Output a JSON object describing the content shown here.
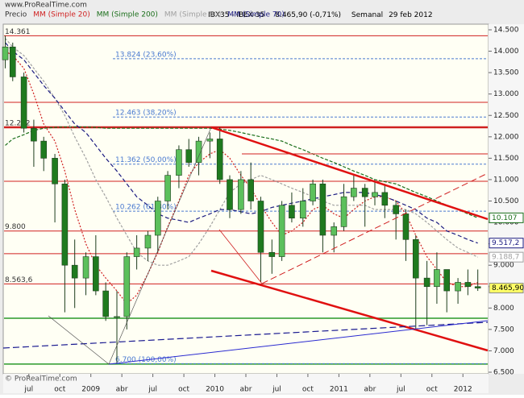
{
  "chart_data": {
    "type": "candlestick",
    "site": "www.ProRealTime.com",
    "copyright": "© ProRealTime.com",
    "header": {
      "symbol": "IBX35 - IBEX-35",
      "last": "8.465,90 (-0,71%)",
      "period": "Semanal",
      "date": "29 feb 2012"
    },
    "xlim": [
      2008.3,
      2012.2
    ],
    "xticks": [
      {
        "value": 2008.5,
        "label": "jul"
      },
      {
        "value": 2008.75,
        "label": "oct"
      },
      2009,
      {
        "value": 2009.25,
        "label": "abr"
      },
      {
        "value": 2009.5,
        "label": "jul"
      },
      {
        "value": 2009.75,
        "label": "oct"
      },
      2010,
      {
        "value": 2010.25,
        "label": "abr"
      },
      {
        "value": 2010.5,
        "label": "jul"
      },
      {
        "value": 2010.75,
        "label": "oct"
      },
      2011,
      {
        "value": 2011.25,
        "label": "abr"
      },
      {
        "value": 2011.5,
        "label": "jul"
      },
      {
        "value": 2011.75,
        "label": "oct"
      },
      2012
    ],
    "ylim": [
      6500,
      14500
    ],
    "yticks": [
      {
        "value": 14500,
        "label": "14.500"
      },
      {
        "value": 14000,
        "label": "14.000"
      },
      {
        "value": 13500,
        "label": "13.500"
      },
      {
        "value": 13000,
        "label": "13.000"
      },
      {
        "value": 12500,
        "label": "12.500"
      },
      {
        "value": 12000,
        "label": "12.000"
      },
      {
        "value": 11500,
        "label": "11.500"
      },
      {
        "value": 11000,
        "label": "11.000"
      },
      {
        "value": 10500,
        "label": "10.500"
      },
      {
        "value": 10000,
        "label": "10.000"
      },
      {
        "value": 9500,
        "label": "9.500"
      },
      {
        "value": 9000,
        "label": "9.000"
      },
      {
        "value": 8500,
        "label": "8.500"
      },
      {
        "value": 8000,
        "label": "8.000"
      },
      {
        "value": 7500,
        "label": "7.500"
      },
      {
        "value": 7000,
        "label": "7.000"
      },
      {
        "value": 6500,
        "label": "6.500"
      }
    ],
    "price": {
      "name": "Precio",
      "x": [
        2008.31,
        2008.37,
        2008.46,
        2008.54,
        2008.62,
        2008.71,
        2008.79,
        2008.87,
        2008.96,
        2009.04,
        2009.12,
        2009.21,
        2009.29,
        2009.37,
        2009.46,
        2009.54,
        2009.62,
        2009.71,
        2009.79,
        2009.87,
        2009.96,
        2010.04,
        2010.12,
        2010.21,
        2010.29,
        2010.37,
        2010.46,
        2010.54,
        2010.62,
        2010.71,
        2010.79,
        2010.87,
        2010.96,
        2011.04,
        2011.12,
        2011.21,
        2011.29,
        2011.37,
        2011.46,
        2011.54,
        2011.62,
        2011.71,
        2011.79,
        2011.87,
        2011.96,
        2012.04,
        2012.12
      ],
      "open": [
        13800,
        14100,
        13400,
        12200,
        11900,
        11500,
        10900,
        9000,
        8700,
        9200,
        8400,
        7800,
        7800,
        9200,
        9400,
        9700,
        10500,
        11100,
        11700,
        11400,
        11900,
        11950,
        11000,
        10300,
        11000,
        10500,
        9300,
        9200,
        10400,
        10100,
        10500,
        10900,
        9700,
        9900,
        10600,
        10800,
        10600,
        10700,
        10400,
        10200,
        9600,
        8700,
        8500,
        8900,
        8400,
        8600,
        8500
      ],
      "high": [
        14361,
        14200,
        13500,
        12400,
        12000,
        11600,
        11000,
        9600,
        9300,
        9700,
        8600,
        8400,
        9300,
        9700,
        9800,
        10600,
        11200,
        11800,
        11950,
        12000,
        12100,
        12222,
        11100,
        11200,
        11400,
        10600,
        9600,
        10500,
        10700,
        10800,
        11000,
        11000,
        10000,
        10900,
        11100,
        10900,
        11000,
        10900,
        10500,
        10300,
        9700,
        9100,
        9300,
        8900,
        8700,
        8900,
        8900
      ],
      "low": [
        13600,
        13300,
        12100,
        11300,
        11200,
        10000,
        7900,
        8000,
        8300,
        8300,
        7700,
        6700,
        7500,
        8900,
        9100,
        9300,
        10300,
        10800,
        11300,
        11100,
        11500,
        10900,
        10100,
        10200,
        10300,
        8600,
        8800,
        9100,
        10000,
        9900,
        10400,
        9300,
        9300,
        9800,
        10500,
        9900,
        10400,
        10100,
        9600,
        9100,
        7500,
        7600,
        8100,
        7900,
        8100,
        8300,
        8400
      ],
      "close": [
        14100,
        13400,
        12200,
        11900,
        11500,
        10900,
        9000,
        8700,
        9200,
        8400,
        7800,
        7800,
        9200,
        9400,
        9700,
        10500,
        11100,
        11700,
        11400,
        11900,
        11950,
        11000,
        10300,
        11000,
        10500,
        9300,
        9200,
        10400,
        10100,
        10500,
        10900,
        9700,
        9900,
        10600,
        10800,
        10600,
        10700,
        10400,
        10200,
        9600,
        8700,
        8500,
        8900,
        8400,
        8600,
        8500,
        8465.9
      ],
      "end_label": {
        "value": 8465.9,
        "label": "8.465,90"
      }
    },
    "series": [
      {
        "name": "MM (Simple 20)",
        "color": "#d02020",
        "dash": "2,2",
        "values": [
          14000,
          13900,
          13600,
          13000,
          12300,
          11900,
          11200,
          10300,
          9500,
          9000,
          8700,
          8400,
          8100,
          8300,
          8800,
          9300,
          9900,
          10500,
          11100,
          11400,
          11600,
          11700,
          11500,
          11100,
          10800,
          10400,
          10000,
          9700,
          9800,
          10000,
          10300,
          10400,
          10200,
          10100,
          10300,
          10500,
          10600,
          10600,
          10500,
          10200,
          9700,
          9200,
          8900,
          8600,
          8500,
          8500,
          8600
        ]
      },
      {
        "name": "MM (Simple 200)",
        "color": "#1a6e1a",
        "dash": "4,2",
        "values": [
          11800,
          11950,
          12050,
          12150,
          12200,
          12220,
          12230,
          12230,
          12230,
          12220,
          12200,
          12200,
          12200,
          12200,
          12200,
          12200,
          12200,
          12200,
          12200,
          12200,
          12200,
          12180,
          12150,
          12100,
          12050,
          12000,
          11950,
          11900,
          11800,
          11700,
          11600,
          11500,
          11400,
          11300,
          11200,
          11100,
          11000,
          10950,
          10900,
          10800,
          10700,
          10600,
          10500,
          10400,
          10300,
          10200,
          10107
        ],
        "end_label": {
          "value": 10107,
          "label": "10.107"
        }
      },
      {
        "name": "MM (Simple 50)",
        "color": "#a0a0a0",
        "dash": "3,2",
        "values": [
          14300,
          14100,
          13900,
          13600,
          13300,
          12900,
          12500,
          12000,
          11500,
          11000,
          10600,
          10100,
          9700,
          9300,
          9100,
          9000,
          9000,
          9100,
          9200,
          9500,
          9900,
          10300,
          10700,
          10900,
          11000,
          11100,
          11000,
          10900,
          10800,
          10700,
          10600,
          10500,
          10400,
          10400,
          10400,
          10400,
          10300,
          10300,
          10300,
          10300,
          10200,
          10000,
          9800,
          9600,
          9400,
          9300,
          9188.7
        ],
        "end_label": {
          "value": 9188.7,
          "label": "9.188,7"
        }
      },
      {
        "name": "MM (Simple 70)",
        "color": "#1a1a80",
        "dash": "5,3",
        "values": [
          14200,
          14000,
          13800,
          13500,
          13200,
          12900,
          12600,
          12300,
          12100,
          11800,
          11500,
          11200,
          10900,
          10600,
          10400,
          10200,
          10100,
          10050,
          10000,
          10100,
          10200,
          10300,
          10300,
          10250,
          10200,
          10250,
          10350,
          10400,
          10450,
          10500,
          10550,
          10600,
          10650,
          10700,
          10700,
          10700,
          10650,
          10600,
          10500,
          10400,
          10300,
          10100,
          10000,
          9800,
          9700,
          9600,
          9517.2
        ],
        "end_label": {
          "value": 9517.2,
          "label": "9.517,2"
        }
      }
    ],
    "levels": [
      {
        "value": 14361,
        "label": "14.361"
      },
      {
        "value": 12806
      },
      {
        "value": 12222,
        "label": "12.222"
      },
      {
        "value": 10962
      },
      {
        "value": 9800,
        "label": "9.800"
      },
      {
        "value": 9269
      },
      {
        "value": 8563.6,
        "label": "8.563,6"
      }
    ],
    "level_color": "#d02020",
    "support_levels": [
      7762,
      6690
    ],
    "support_color": "#2a9a2a",
    "fibonacci": [
      {
        "value": 13824,
        "label": "13.824 (23,60%)"
      },
      {
        "value": 12463,
        "label": "12.463 (38,20%)"
      },
      {
        "value": 11362,
        "label": "11.362 (50,00%)"
      },
      {
        "value": 10262,
        "label": "10.262 (61,80%)"
      },
      {
        "value": 6700,
        "label": "6.700 (100,00%)"
      }
    ],
    "fib_color": "#4a7ad0"
  }
}
